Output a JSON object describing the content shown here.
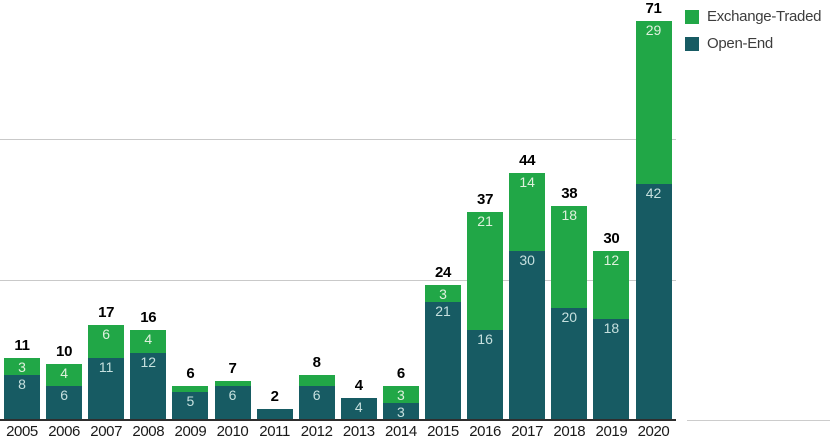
{
  "legend": {
    "items": [
      {
        "label": "Exchange-Traded",
        "color": "#21A747"
      },
      {
        "label": "Open-End",
        "color": "#175B63"
      }
    ]
  },
  "chart_data": {
    "type": "bar",
    "stacked": true,
    "categories": [
      "2005",
      "2006",
      "2007",
      "2008",
      "2009",
      "2010",
      "2011",
      "2012",
      "2013",
      "2014",
      "2015",
      "2016",
      "2017",
      "2018",
      "2019",
      "2020"
    ],
    "series": [
      {
        "name": "Open-End",
        "color": "#175B63",
        "label_color": "#C6E0DE",
        "values": [
          8,
          6,
          11,
          12,
          5,
          6,
          2,
          6,
          4,
          3,
          21,
          16,
          30,
          20,
          18,
          42
        ]
      },
      {
        "name": "Exchange-Traded",
        "color": "#21A747",
        "label_color": "#DFF1DD",
        "values": [
          3,
          4,
          6,
          4,
          1,
          1,
          0,
          2,
          0,
          3,
          3,
          21,
          14,
          18,
          12,
          29
        ]
      }
    ],
    "totals": [
      11,
      10,
      17,
      16,
      6,
      7,
      2,
      8,
      4,
      6,
      24,
      37,
      44,
      38,
      30,
      71
    ],
    "ylim": [
      0,
      75
    ],
    "gridline_values": [
      25,
      50
    ],
    "grid": true,
    "legend_position": "top-right",
    "value_label_min": 3,
    "total_label_color": "#000000",
    "axis_label_color": "#1A1A1A",
    "gridline_color": "#C9C9C9",
    "baseline_color": "#2E2E2E"
  }
}
